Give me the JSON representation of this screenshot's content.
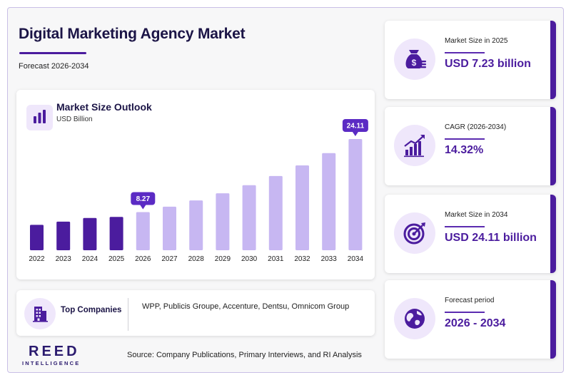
{
  "title": "Digital Marketing Agency Market",
  "subtitle": "Forecast 2026-2034",
  "chart_data": {
    "type": "bar",
    "title": "Market Size Outlook",
    "unit": "USD Billion",
    "categories": [
      "2022",
      "2023",
      "2024",
      "2025",
      "2026",
      "2027",
      "2028",
      "2029",
      "2030",
      "2031",
      "2032",
      "2033",
      "2034"
    ],
    "values": [
      5.5,
      6.2,
      7.0,
      7.23,
      8.27,
      9.45,
      10.8,
      12.35,
      14.1,
      16.1,
      18.4,
      21.05,
      24.11
    ],
    "historical_count": 4,
    "callouts": [
      {
        "index": 4,
        "label": "8.27"
      },
      {
        "index": 12,
        "label": "24.11"
      }
    ],
    "colors": {
      "historical": "#4b1c9e",
      "forecast": "#c7b7f2",
      "callout": "#5b2bc4"
    }
  },
  "top_companies": {
    "label": "Top Companies",
    "list": "WPP, Publicis Groupe, Accenture, Dentsu, Omnicom Group"
  },
  "stats": [
    {
      "label": "Market Size in 2025",
      "value": "USD 7.23 billion",
      "icon": "money-bag-icon"
    },
    {
      "label": "CAGR (2026-2034)",
      "value": "14.32%",
      "icon": "growth-chart-icon"
    },
    {
      "label": "Market Size in 2034",
      "value": "USD 24.11 billion",
      "icon": "target-icon"
    },
    {
      "label": "Forecast period",
      "value": "2026 - 2034",
      "icon": "globe-icon"
    }
  ],
  "logo": {
    "main": "REED",
    "sub": "INTELLIGENCE"
  },
  "source": "Source: Company Publications, Primary Interviews, and RI Analysis",
  "accent_color": "#4b1c9e"
}
